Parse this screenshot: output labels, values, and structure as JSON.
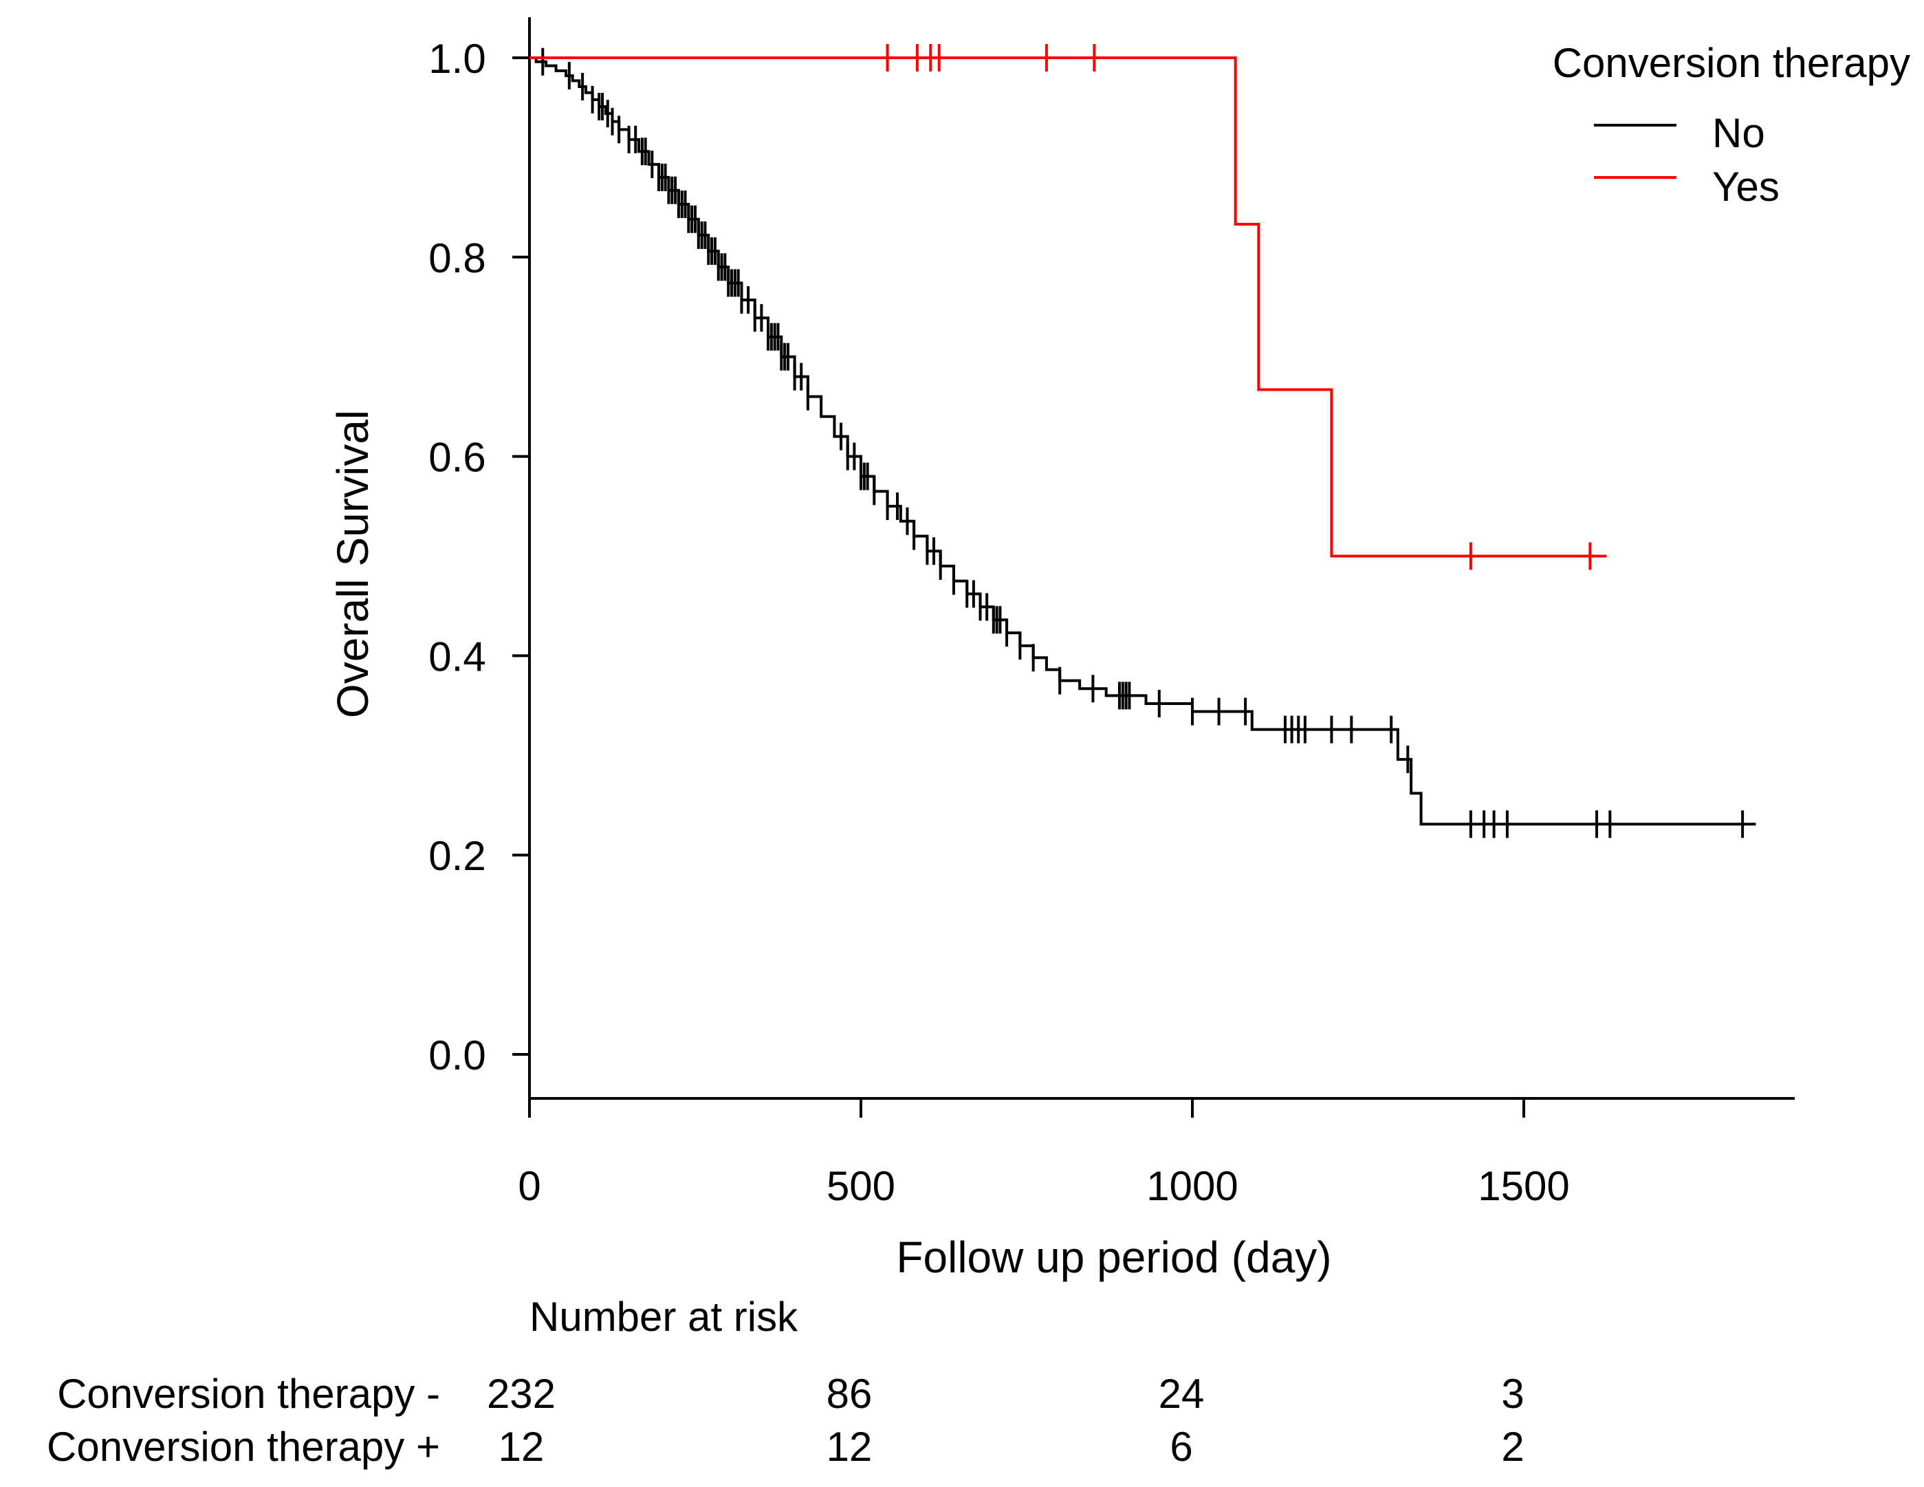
{
  "chart_data": {
    "type": "line",
    "subtype": "kaplan-meier",
    "xlabel": "Follow up period (day)",
    "ylabel": "Overall Survival",
    "xlim": [
      0,
      1900
    ],
    "ylim": [
      -0.04,
      1.04
    ],
    "xticks": [
      0,
      500,
      1000,
      1500
    ],
    "xtick_labels": [
      "0",
      "500",
      "1000",
      "1500"
    ],
    "yticks": [
      0.0,
      0.2,
      0.4,
      0.6,
      0.8,
      1.0
    ],
    "ytick_labels": [
      "0.0",
      "0.2",
      "0.4",
      "0.6",
      "0.8",
      "1.0"
    ],
    "legend": {
      "title": "Conversion therapy",
      "position": "top-right",
      "entries": [
        {
          "label": "No",
          "color": "#000000"
        },
        {
          "label": "Yes",
          "color": "#ff0000"
        }
      ]
    },
    "series": [
      {
        "name": "No",
        "color": "#000000",
        "steps": [
          [
            0,
            1.0
          ],
          [
            10,
            0.996
          ],
          [
            25,
            0.992
          ],
          [
            40,
            0.987
          ],
          [
            55,
            0.982
          ],
          [
            65,
            0.977
          ],
          [
            75,
            0.971
          ],
          [
            85,
            0.965
          ],
          [
            95,
            0.958
          ],
          [
            105,
            0.951
          ],
          [
            115,
            0.944
          ],
          [
            125,
            0.936
          ],
          [
            135,
            0.928
          ],
          [
            150,
            0.918
          ],
          [
            165,
            0.906
          ],
          [
            180,
            0.893
          ],
          [
            195,
            0.88
          ],
          [
            210,
            0.867
          ],
          [
            225,
            0.853
          ],
          [
            240,
            0.838
          ],
          [
            255,
            0.822
          ],
          [
            270,
            0.806
          ],
          [
            285,
            0.79
          ],
          [
            300,
            0.774
          ],
          [
            320,
            0.757
          ],
          [
            340,
            0.739
          ],
          [
            360,
            0.72
          ],
          [
            380,
            0.7
          ],
          [
            400,
            0.68
          ],
          [
            420,
            0.66
          ],
          [
            440,
            0.64
          ],
          [
            460,
            0.62
          ],
          [
            480,
            0.6
          ],
          [
            500,
            0.58
          ],
          [
            520,
            0.565
          ],
          [
            540,
            0.55
          ],
          [
            560,
            0.535
          ],
          [
            580,
            0.52
          ],
          [
            600,
            0.505
          ],
          [
            620,
            0.49
          ],
          [
            640,
            0.475
          ],
          [
            660,
            0.462
          ],
          [
            680,
            0.449
          ],
          [
            700,
            0.436
          ],
          [
            720,
            0.423
          ],
          [
            740,
            0.41
          ],
          [
            760,
            0.398
          ],
          [
            780,
            0.386
          ],
          [
            800,
            0.375
          ],
          [
            830,
            0.367
          ],
          [
            870,
            0.36
          ],
          [
            930,
            0.352
          ],
          [
            1000,
            0.344
          ],
          [
            1090,
            0.326
          ],
          [
            1310,
            0.296
          ],
          [
            1330,
            0.262
          ],
          [
            1345,
            0.231
          ],
          [
            1850,
            0.231
          ]
        ],
        "censor_times": [
          20,
          60,
          80,
          95,
          105,
          110,
          118,
          125,
          135,
          150,
          160,
          170,
          175,
          185,
          195,
          200,
          205,
          210,
          215,
          220,
          225,
          230,
          235,
          240,
          245,
          250,
          255,
          260,
          265,
          270,
          275,
          280,
          285,
          290,
          295,
          300,
          305,
          310,
          315,
          320,
          330,
          340,
          350,
          360,
          365,
          370,
          375,
          380,
          385,
          390,
          400,
          410,
          420,
          470,
          480,
          490,
          500,
          505,
          510,
          520,
          540,
          555,
          570,
          580,
          600,
          610,
          620,
          640,
          660,
          670,
          680,
          690,
          700,
          705,
          710,
          720,
          740,
          760,
          800,
          850,
          890,
          895,
          900,
          905,
          950,
          1000,
          1040,
          1080,
          1140,
          1150,
          1160,
          1170,
          1210,
          1240,
          1300,
          1325,
          1420,
          1440,
          1455,
          1475,
          1610,
          1630,
          1830
        ]
      },
      {
        "name": "Yes",
        "color": "#ff0000",
        "steps": [
          [
            0,
            1.0
          ],
          [
            1065,
            0.833
          ],
          [
            1100,
            0.667
          ],
          [
            1210,
            0.5
          ],
          [
            1625,
            0.5
          ]
        ],
        "censor_times": [
          540,
          585,
          605,
          618,
          780,
          852,
          1420,
          1600
        ]
      }
    ]
  },
  "risk_table": {
    "title": "Number at risk",
    "rows": [
      {
        "label": "Conversion therapy -",
        "values": [
          "232",
          "86",
          "24",
          "3"
        ]
      },
      {
        "label": "Conversion therapy +",
        "values": [
          "12",
          "12",
          "6",
          "2"
        ]
      }
    ]
  }
}
